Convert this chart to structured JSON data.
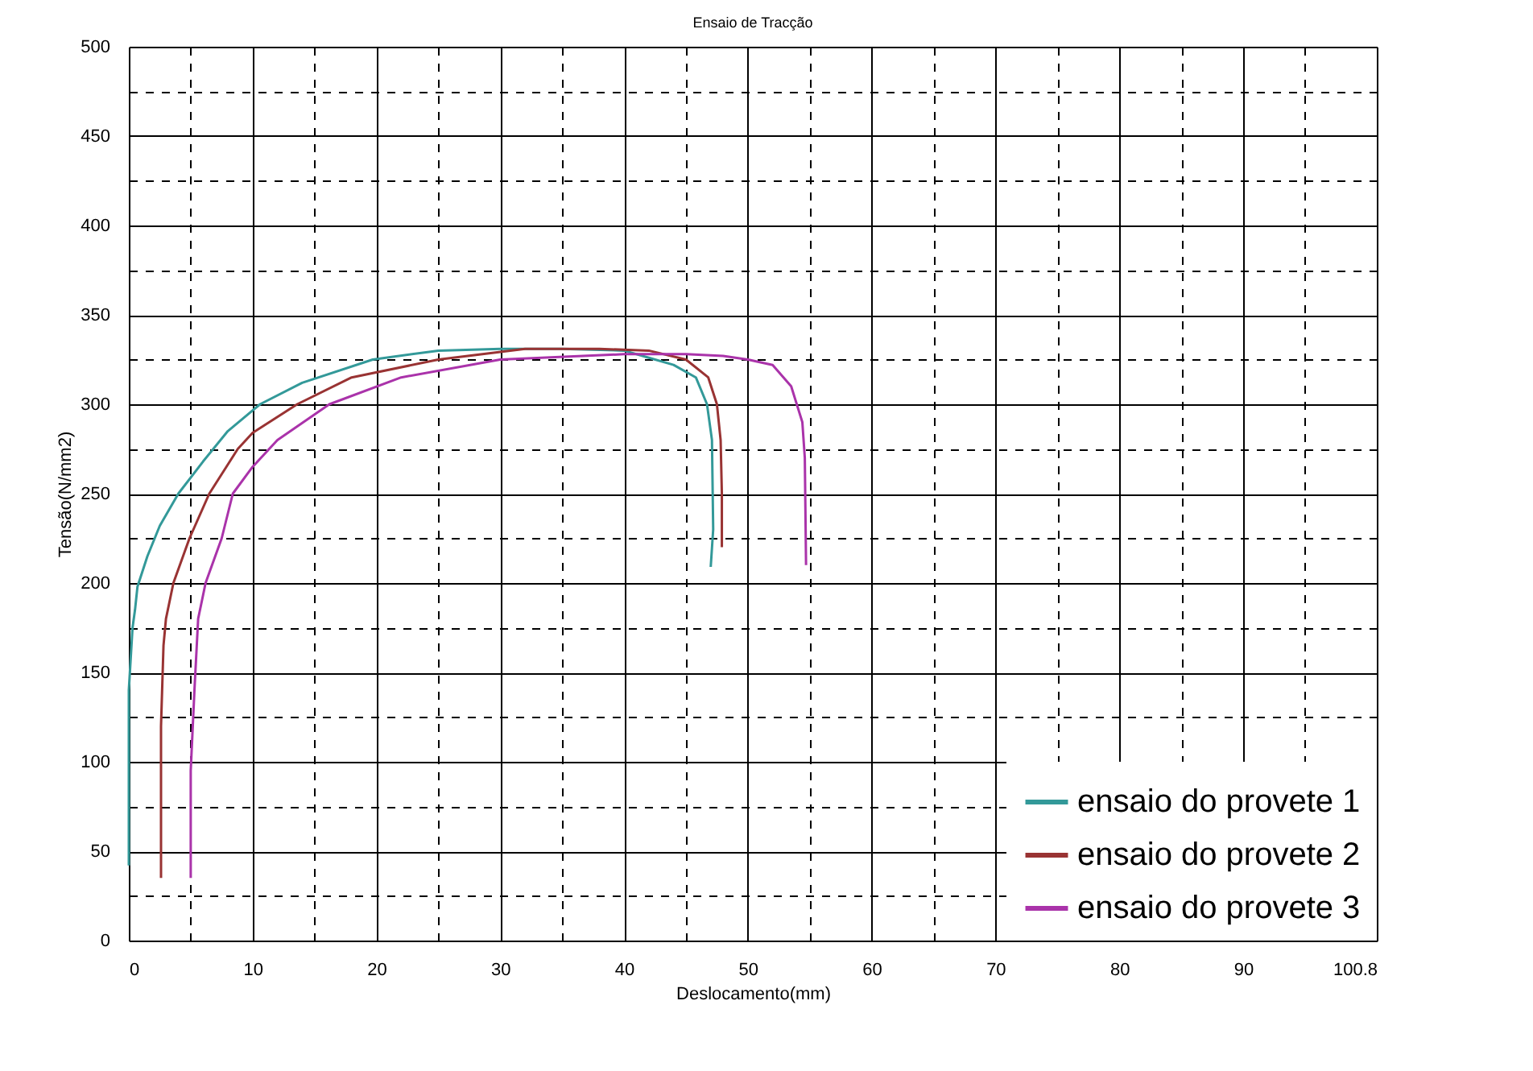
{
  "chart_data": {
    "type": "line",
    "title": "Ensaio de Tracção",
    "xlabel": "Deslocamento(mm)",
    "ylabel": "Tensão(N/mm2)",
    "xlim": [
      0,
      100.8
    ],
    "ylim": [
      0,
      500
    ],
    "xticks": [
      0,
      {
        "value": 5,
        "label": null
      },
      10,
      {
        "value": 15,
        "label": null
      },
      20,
      {
        "value": 25,
        "label": null
      },
      30,
      {
        "value": 35,
        "label": null
      },
      40,
      {
        "value": 45,
        "label": null
      },
      50,
      {
        "value": 55,
        "label": null
      },
      60,
      {
        "value": 65,
        "label": null
      },
      70,
      {
        "value": 75,
        "label": null
      },
      80,
      {
        "value": 85,
        "label": null
      },
      90,
      {
        "value": 95,
        "label": null
      },
      100.8
    ],
    "yticks": [
      0,
      {
        "value": 25,
        "label": null
      },
      50,
      {
        "value": 75,
        "label": null
      },
      100,
      {
        "value": 125,
        "label": null
      },
      150,
      {
        "value": 175,
        "label": null
      },
      200,
      {
        "value": 225,
        "label": null
      },
      250,
      {
        "value": 275,
        "label": null
      },
      300,
      {
        "value": 325,
        "label": null
      },
      350,
      {
        "value": 375,
        "label": null
      },
      400,
      {
        "value": 425,
        "label": null
      },
      450,
      {
        "value": 475,
        "label": null
      },
      500
    ],
    "grid": true,
    "legend": "bottom right",
    "line_style": "solid",
    "marker": "none",
    "series": [
      {
        "name": "ensaio do provete 1",
        "color": "#339999",
        "x": [
          0,
          0,
          0.3,
          0.5,
          0.7,
          1.5,
          2.5,
          4,
          6,
          8,
          10.6,
          14,
          19.7,
          25,
          30,
          35,
          40,
          42,
          44,
          45.8,
          46.7,
          47.1,
          47.2,
          47.0
        ],
        "values": [
          42,
          140,
          175,
          185,
          198,
          215,
          232,
          250,
          268,
          285,
          300,
          312,
          325,
          330,
          331,
          331,
          330,
          326,
          322,
          315,
          300,
          280,
          230,
          209
        ]
      },
      {
        "name": "ensaio do provete 2",
        "color": "#993333",
        "x": [
          2.6,
          2.6,
          2.8,
          3.0,
          3.6,
          4.9,
          6.5,
          8.8,
          10,
          13.6,
          18,
          25,
          32,
          38,
          42,
          45,
          46.8,
          47.5,
          47.8,
          47.9,
          47.9
        ],
        "values": [
          35,
          120,
          165,
          180,
          200,
          225,
          250,
          275,
          284,
          300,
          315,
          325,
          331,
          331,
          330,
          325,
          315,
          300,
          280,
          250,
          220
        ]
      },
      {
        "name": "ensaio do provete 3",
        "color": "#aa33aa",
        "x": [
          5.0,
          5.0,
          5.3,
          5.6,
          6.2,
          7.5,
          8.4,
          10,
          12,
          16.2,
          22,
          30,
          40,
          45,
          48,
          50,
          52,
          53.5,
          54.4,
          54.6,
          54.7
        ],
        "values": [
          35,
          95,
          140,
          180,
          200,
          225,
          250,
          265,
          280,
          300,
          315,
          325,
          328,
          328,
          327,
          325,
          322,
          310,
          290,
          270,
          210
        ]
      }
    ]
  }
}
